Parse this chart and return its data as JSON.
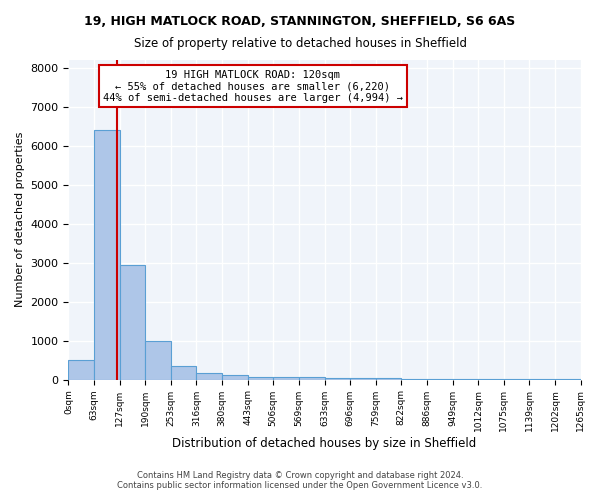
{
  "title1": "19, HIGH MATLOCK ROAD, STANNINGTON, SHEFFIELD, S6 6AS",
  "title2": "Size of property relative to detached houses in Sheffield",
  "xlabel": "Distribution of detached houses by size in Sheffield",
  "ylabel": "Number of detached properties",
  "bar_color": "#aec6e8",
  "bar_edge_color": "#5a9fd4",
  "annotation_box_color": "#ffffff",
  "annotation_box_edge": "#cc0000",
  "property_line_color": "#cc0000",
  "property_size": 120,
  "annotation_title": "19 HIGH MATLOCK ROAD: 120sqm",
  "annotation_line2": "← 55% of detached houses are smaller (6,220)",
  "annotation_line3": "44% of semi-detached houses are larger (4,994) →",
  "bin_edges": [
    0,
    63,
    127,
    190,
    253,
    316,
    380,
    443,
    506,
    569,
    633,
    696,
    759,
    822,
    886,
    949,
    1012,
    1075,
    1139,
    1202,
    1265
  ],
  "bar_heights": [
    500,
    6400,
    2950,
    1000,
    350,
    180,
    120,
    70,
    60,
    55,
    45,
    35,
    30,
    25,
    20,
    15,
    12,
    10,
    8,
    7
  ],
  "ylim": [
    0,
    8200
  ],
  "yticks": [
    0,
    1000,
    2000,
    3000,
    4000,
    5000,
    6000,
    7000,
    8000
  ],
  "footer1": "Contains HM Land Registry data © Crown copyright and database right 2024.",
  "footer2": "Contains public sector information licensed under the Open Government Licence v3.0.",
  "background_color": "#f0f4fa"
}
